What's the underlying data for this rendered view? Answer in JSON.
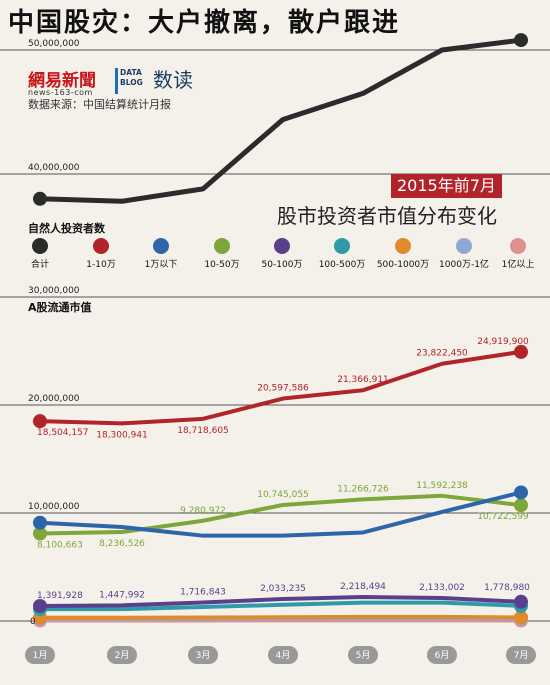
{
  "headline": "中国股灾：大户撤离，散户跟进",
  "brand": {
    "name": "網易新聞",
    "url": "news-163-com",
    "datablog": "DATA BLOG",
    "datablog_name": "数读"
  },
  "source": "数据来源：中国结算统计月报",
  "period": "2015年前7月",
  "subtitle": "股市投资者市值分布变化",
  "legend_title": "自然人投资者数",
  "legend": [
    {
      "label": "合计",
      "color": "#2b2b2b"
    },
    {
      "label": "1-10万",
      "color": "#b0242a"
    },
    {
      "label": "1万以下",
      "color": "#2d66a8"
    },
    {
      "label": "10-50万",
      "color": "#7ea63a"
    },
    {
      "label": "50-100万",
      "color": "#5b3f8f"
    },
    {
      "label": "100-500万",
      "color": "#2f9aa8"
    },
    {
      "label": "500-1000万",
      "color": "#e08a2c"
    },
    {
      "label": "1000万-1亿",
      "color": "#8eaad4"
    },
    {
      "label": "1亿以上",
      "color": "#e0908c"
    }
  ],
  "chart_data": [
    {
      "type": "line",
      "title": "自然人投资者数",
      "x": [
        "1月",
        "2月",
        "3月",
        "4月",
        "5月",
        "6月",
        "7月"
      ],
      "yticks": [
        "40,000,000",
        "50,000,000"
      ],
      "ylim": [
        34000000,
        51000000
      ],
      "grid": true,
      "series": [
        {
          "name": "合计",
          "color": "#2b2b2b",
          "values": [
            38000000,
            37800000,
            38800000,
            44400000,
            46500000,
            50000000,
            50800000
          ]
        }
      ]
    },
    {
      "type": "line",
      "title": "A股流通市值",
      "x": [
        "1月",
        "2月",
        "3月",
        "4月",
        "5月",
        "6月",
        "7月"
      ],
      "yticks": [
        "0",
        "10,000,000",
        "20,000,000",
        "30,000,000"
      ],
      "ylim": [
        0,
        30000000
      ],
      "grid": true,
      "series": [
        {
          "name": "1-10万",
          "color": "#b0242a",
          "values": [
            18504157,
            18300941,
            18718605,
            20597586,
            21366911,
            23822450,
            24919900
          ],
          "labels": [
            "18,504,157",
            "18,300,941",
            "18,718,605",
            "20,597,586",
            "21,366,911",
            "23,822,450",
            "24,919,900"
          ]
        },
        {
          "name": "1万以下",
          "color": "#2d66a8",
          "values": [
            9100000,
            8700000,
            7900000,
            7900000,
            8200000,
            10100000,
            11900000
          ]
        },
        {
          "name": "10-50万",
          "color": "#7ea63a",
          "values": [
            8100663,
            8236526,
            9280972,
            10745055,
            11266726,
            11592238,
            10722599
          ],
          "labels": [
            "8,100,663",
            "8,236,526",
            "9,280,972",
            "10,745,055",
            "11,266,726",
            "11,592,238",
            "10,722,599"
          ]
        },
        {
          "name": "50-100万",
          "color": "#5b3f8f",
          "values": [
            1391928,
            1447992,
            1716843,
            2033235,
            2218494,
            2133002,
            1778980
          ],
          "labels": [
            "1,391,928",
            "1,447,992",
            "1,716,843",
            "2,033,235",
            "2,218,494",
            "2,133,002",
            "1,778,980"
          ]
        },
        {
          "name": "100-500万",
          "color": "#2f9aa8",
          "values": [
            1100000,
            1100000,
            1300000,
            1500000,
            1700000,
            1700000,
            1400000
          ]
        },
        {
          "name": "500-1000万",
          "color": "#e08a2c",
          "values": [
            300000,
            300000,
            320000,
            350000,
            380000,
            380000,
            330000
          ]
        },
        {
          "name": "1000万-1亿",
          "color": "#8eaad4",
          "values": [
            200000,
            200000,
            220000,
            240000,
            260000,
            260000,
            230000
          ]
        },
        {
          "name": "1亿以上",
          "color": "#e0908c",
          "values": [
            50000,
            50000,
            50000,
            60000,
            60000,
            60000,
            50000
          ]
        }
      ]
    }
  ]
}
